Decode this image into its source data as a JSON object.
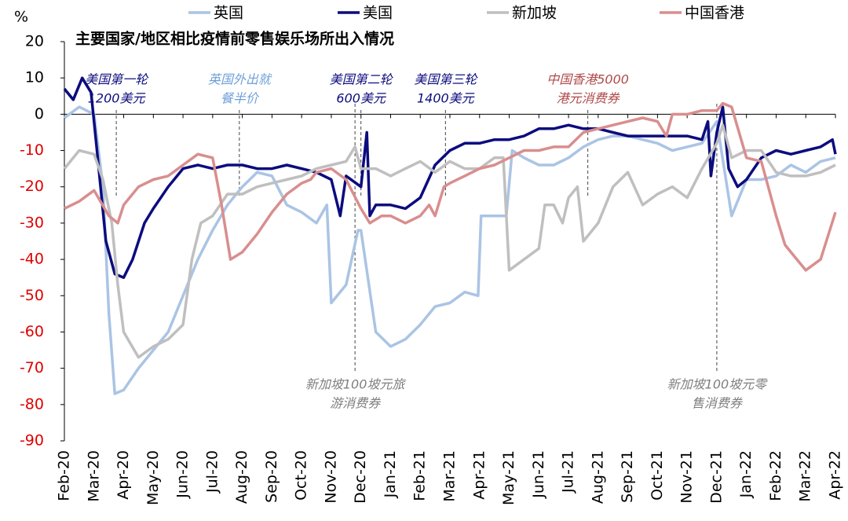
{
  "chart_data": {
    "type": "line",
    "title": "主要国家/地区相比疫情前零售娱乐场所出入情况",
    "y_unit": "%",
    "xlim": [
      0,
      26
    ],
    "xticks": [
      {
        "value": 0,
        "label": "Feb-20"
      },
      {
        "value": 1,
        "label": "Mar-20"
      },
      {
        "value": 2,
        "label": "Apr-20"
      },
      {
        "value": 3,
        "label": "May-20"
      },
      {
        "value": 4,
        "label": "Jun-20"
      },
      {
        "value": 5,
        "label": "Jul-20"
      },
      {
        "value": 6,
        "label": "Aug-20"
      },
      {
        "value": 7,
        "label": "Sep-20"
      },
      {
        "value": 8,
        "label": "Oct-20"
      },
      {
        "value": 9,
        "label": "Nov-20"
      },
      {
        "value": 10,
        "label": "Dec-20"
      },
      {
        "value": 11,
        "label": "Jan-21"
      },
      {
        "value": 12,
        "label": "Feb-21"
      },
      {
        "value": 13,
        "label": "Mar-21"
      },
      {
        "value": 14,
        "label": "Apr-21"
      },
      {
        "value": 15,
        "label": "May-21"
      },
      {
        "value": 16,
        "label": "Jun-21"
      },
      {
        "value": 17,
        "label": "Jul-21"
      },
      {
        "value": 18,
        "label": "Aug-21"
      },
      {
        "value": 19,
        "label": "Sep-21"
      },
      {
        "value": 20,
        "label": "Oct-21"
      },
      {
        "value": 21,
        "label": "Nov-21"
      },
      {
        "value": 22,
        "label": "Dec-21"
      },
      {
        "value": 23,
        "label": "Jan-22"
      },
      {
        "value": 24,
        "label": "Feb-22"
      },
      {
        "value": 25,
        "label": "Mar-22"
      },
      {
        "value": 26,
        "label": "Apr-22"
      }
    ],
    "ylim": [
      -90,
      20
    ],
    "yticks": [
      -90,
      -80,
      -70,
      -60,
      -50,
      -40,
      -30,
      -20,
      -10,
      0,
      10,
      20
    ],
    "series": [
      {
        "name": "英国",
        "color": "#aac4e4",
        "x": [
          0,
          0.5,
          1,
          1.3,
          1.5,
          1.7,
          2,
          2.5,
          3,
          3.5,
          4,
          4.5,
          5,
          5.5,
          6,
          6.5,
          7,
          7.5,
          8,
          8.5,
          8.85,
          9,
          9.5,
          9.9,
          10,
          10.5,
          11,
          11.5,
          12,
          12.5,
          13,
          13.5,
          13.95,
          14.05,
          14.5,
          14.9,
          15.1,
          15.5,
          16,
          16.5,
          17,
          17.5,
          18,
          18.5,
          19,
          19.5,
          20,
          20.5,
          21,
          21.5,
          22,
          22.5,
          23,
          23.5,
          24,
          24.5,
          25,
          25.5,
          26
        ],
        "values": [
          -1,
          2,
          0,
          -20,
          -55,
          -77,
          -76,
          -70,
          -65,
          -60,
          -50,
          -40,
          -32,
          -25,
          -20,
          -16,
          -17,
          -25,
          -27,
          -30,
          -25,
          -52,
          -47,
          -32,
          -32,
          -60,
          -64,
          -62,
          -58,
          -53,
          -52,
          -49,
          -50,
          -28,
          -28,
          -28,
          -10,
          -12,
          -14,
          -14,
          -12,
          -9,
          -7,
          -6,
          -6,
          -7,
          -8,
          -10,
          -9,
          -8,
          -2,
          -28,
          -18,
          -18,
          -17,
          -14,
          -16,
          -13,
          -12
        ]
      },
      {
        "name": "美国",
        "color": "#0c0c7e",
        "x": [
          0,
          0.3,
          0.6,
          0.9,
          1.1,
          1.4,
          1.7,
          2,
          2.3,
          2.7,
          3,
          3.5,
          4,
          4.5,
          5,
          5.5,
          6,
          6.5,
          7,
          7.5,
          8,
          8.5,
          9,
          9.3,
          9.5,
          10,
          10.2,
          10.3,
          10.5,
          11,
          11.5,
          12,
          12.5,
          13,
          13.5,
          14,
          14.5,
          15,
          15.5,
          16,
          16.5,
          17,
          17.5,
          18,
          18.5,
          19,
          19.5,
          20,
          20.5,
          21,
          21.5,
          21.7,
          21.8,
          22,
          22.2,
          22.4,
          22.7,
          23,
          23.5,
          24,
          24.5,
          25,
          25.5,
          25.9,
          26
        ],
        "values": [
          7,
          4,
          10,
          6,
          -10,
          -35,
          -44,
          -45,
          -40,
          -30,
          -26,
          -20,
          -15,
          -14,
          -15,
          -14,
          -14,
          -15,
          -15,
          -14,
          -15,
          -16,
          -18,
          -28,
          -17,
          -20,
          -5,
          -28,
          -25,
          -25,
          -26,
          -23,
          -14,
          -10,
          -8,
          -8,
          -7,
          -7,
          -6,
          -4,
          -4,
          -3,
          -4,
          -4,
          -5,
          -6,
          -6,
          -6,
          -6,
          -6,
          -7,
          -2,
          -17,
          -5,
          2,
          -15,
          -20,
          -18,
          -12,
          -10,
          -11,
          -10,
          -9,
          -7,
          -11
        ]
      },
      {
        "name": "新加坡",
        "color": "#bfbfbf",
        "x": [
          0,
          0.5,
          1,
          1.3,
          1.6,
          1.8,
          2,
          2.5,
          3,
          3.5,
          4,
          4.3,
          4.6,
          5,
          5.5,
          6,
          6.5,
          7,
          7.5,
          8,
          8.5,
          9,
          9.5,
          9.8,
          10,
          10.5,
          11,
          11.5,
          12,
          12.5,
          13,
          13.5,
          14,
          14.5,
          14.8,
          15,
          15.5,
          16,
          16.2,
          16.5,
          16.8,
          17,
          17.3,
          17.5,
          18,
          18.5,
          19,
          19.5,
          20,
          20.5,
          21,
          21.5,
          22,
          22.2,
          22.5,
          23,
          23.5,
          24,
          24.5,
          25,
          25.5,
          26
        ],
        "values": [
          -15,
          -10,
          -11,
          -18,
          -30,
          -47,
          -60,
          -67,
          -64,
          -62,
          -58,
          -40,
          -30,
          -28,
          -22,
          -22,
          -20,
          -19,
          -18,
          -17,
          -15,
          -14,
          -13,
          -9,
          -15,
          -15,
          -17,
          -15,
          -13,
          -16,
          -13,
          -15,
          -15,
          -12,
          -12,
          -43,
          -40,
          -37,
          -25,
          -25,
          -30,
          -23,
          -20,
          -35,
          -30,
          -20,
          -16,
          -25,
          -22,
          -20,
          -23,
          -15,
          -8,
          -3,
          -12,
          -10,
          -10,
          -16,
          -17,
          -17,
          -16,
          -14
        ]
      },
      {
        "name": "中国香港",
        "color": "#d98e8e",
        "x": [
          0,
          0.5,
          1,
          1.5,
          1.8,
          2,
          2.5,
          3,
          3.5,
          4,
          4.5,
          5,
          5.3,
          5.6,
          6,
          6.5,
          7,
          7.5,
          8,
          8.3,
          8.5,
          9,
          9.5,
          10,
          10.3,
          10.7,
          11,
          11.5,
          12,
          12.3,
          12.5,
          12.8,
          13,
          13.5,
          14,
          14.5,
          15,
          15.5,
          16,
          16.5,
          17,
          17.5,
          18,
          18.5,
          19,
          19.5,
          20,
          20.3,
          20.5,
          21,
          21.5,
          22,
          22.2,
          22.5,
          23,
          23.5,
          24,
          24.3,
          24.5,
          25,
          25.5,
          26
        ],
        "values": [
          -26,
          -24,
          -21,
          -28,
          -30,
          -25,
          -20,
          -18,
          -17,
          -14,
          -11,
          -12,
          -25,
          -40,
          -38,
          -33,
          -27,
          -22,
          -19,
          -18,
          -16,
          -15,
          -18,
          -26,
          -30,
          -28,
          -28,
          -30,
          -28,
          -25,
          -28,
          -20,
          -19,
          -17,
          -15,
          -14,
          -12,
          -10,
          -10,
          -9,
          -9,
          -5,
          -4,
          -3,
          -2,
          -1,
          -2,
          -6,
          0,
          0,
          1,
          1,
          3,
          2,
          -12,
          -13,
          -28,
          -36,
          -38,
          -43,
          -40,
          -27
        ]
      }
    ],
    "annotations": [
      {
        "x": 1.75,
        "text": [
          "美国第一轮",
          "1200美元"
        ],
        "color": "#0c0c7e",
        "position": "top"
      },
      {
        "x": 5.9,
        "text": [
          "英国外出就",
          "餐半价"
        ],
        "color": "#6fa0d8",
        "position": "top"
      },
      {
        "x": 10.0,
        "text": [
          "美国第二轮",
          "600美元"
        ],
        "color": "#0c0c7e",
        "position": "top"
      },
      {
        "x": 12.85,
        "text": [
          "美国第三轮",
          "1400美元"
        ],
        "color": "#0c0c7e",
        "position": "top"
      },
      {
        "x": 17.65,
        "text": [
          "中国香港5000",
          "港元消费券"
        ],
        "color": "#b04a4a",
        "position": "top"
      },
      {
        "x": 9.8,
        "text": [
          "新加坡100坡元旅",
          "游消费券"
        ],
        "color": "#7f7f7f",
        "position": "bottom"
      },
      {
        "x": 22.0,
        "text": [
          "新加坡100坡元零",
          "售消费券"
        ],
        "color": "#7f7f7f",
        "position": "bottom"
      }
    ]
  }
}
